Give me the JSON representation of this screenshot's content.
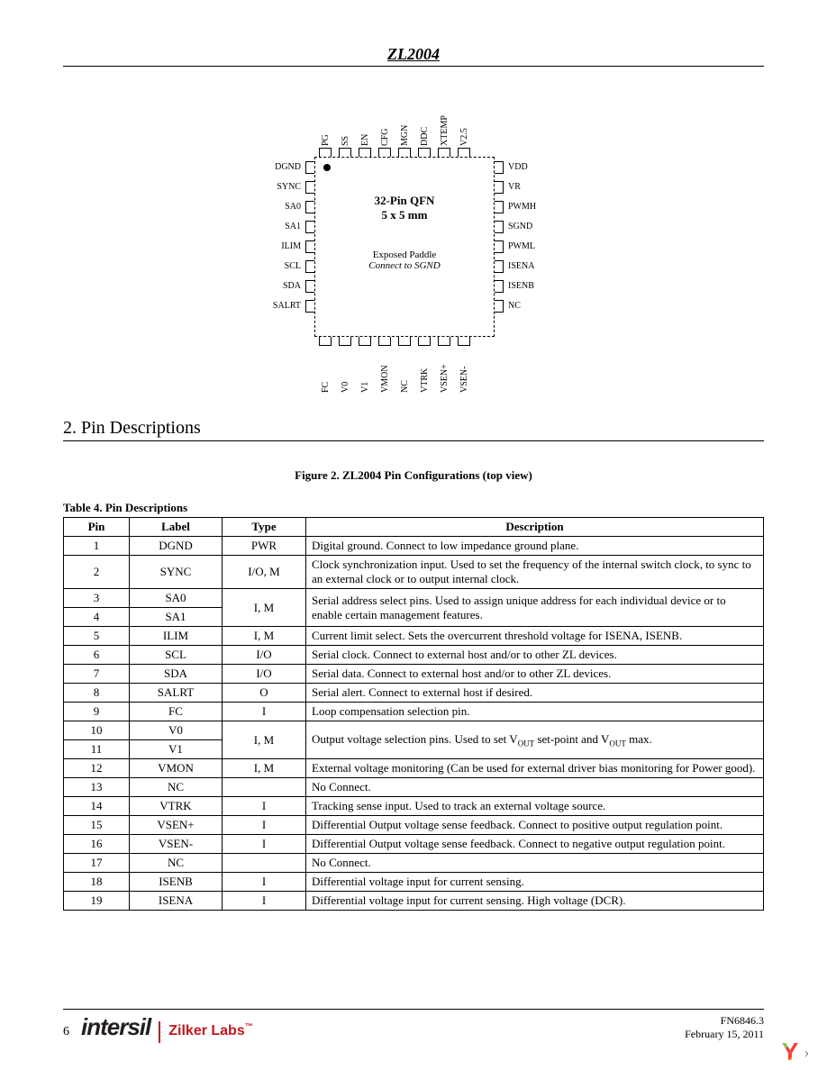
{
  "header": {
    "title": "ZL2004"
  },
  "chip": {
    "title1": "32-Pin QFN",
    "title2": "5 x 5 mm",
    "sub1": "Exposed Paddle",
    "sub2": "Connect to SGND",
    "top_labels": [
      "PG",
      "SS",
      "EN",
      "CFG",
      "MGN",
      "DDC",
      "XTEMP",
      "V2.5"
    ],
    "right_labels": [
      "VDD",
      "VR",
      "PWMH",
      "SGND",
      "PWML",
      "ISENA",
      "ISENB",
      "NC"
    ],
    "bottom_labels": [
      "FC",
      "V0",
      "V1",
      "VMON",
      "NC",
      "VTRK",
      "VSEN+",
      "VSEN-"
    ],
    "left_labels": [
      "DGND",
      "SYNC",
      "SA0",
      "SA1",
      "ILIM",
      "SCL",
      "SDA",
      "SALRT"
    ]
  },
  "section_title": "2. Pin Descriptions",
  "figure_caption": "Figure 2. ZL2004 Pin Configurations (top view)",
  "table_caption": "Table 4. Pin Descriptions",
  "table": {
    "headers": [
      "Pin",
      "Label",
      "Type",
      "Description"
    ],
    "rows": [
      {
        "pin": "1",
        "label": "DGND",
        "type": "PWR",
        "desc": "Digital ground. Connect to low impedance ground plane."
      },
      {
        "pin": "2",
        "label": "SYNC",
        "type": "I/O, M",
        "desc": "Clock synchronization input. Used to set the frequency of the internal switch clock, to sync to an external clock or to output internal clock."
      },
      {
        "pins": [
          "3",
          "4"
        ],
        "labels": [
          "SA0",
          "SA1"
        ],
        "type": "I, M",
        "desc": "Serial address select pins. Used to assign unique address for each individual device or to enable certain management features."
      },
      {
        "pin": "5",
        "label": "ILIM",
        "type": "I, M",
        "desc": "Current limit select. Sets the overcurrent threshold voltage for ISENA, ISENB."
      },
      {
        "pin": "6",
        "label": "SCL",
        "type": "I/O",
        "desc": "Serial clock. Connect to external host and/or to other ZL devices."
      },
      {
        "pin": "7",
        "label": "SDA",
        "type": "I/O",
        "desc": "Serial data. Connect to external host and/or to other ZL devices."
      },
      {
        "pin": "8",
        "label": "SALRT",
        "type": "O",
        "desc": "Serial alert. Connect to external host if desired."
      },
      {
        "pin": "9",
        "label": "FC",
        "type": "I",
        "desc": "Loop compensation selection pin."
      },
      {
        "pins": [
          "10",
          "11"
        ],
        "labels": [
          "V0",
          "V1"
        ],
        "type": "I, M",
        "desc_html": "Output voltage selection pins. Used to set V<span class='sub'>OUT</span> set-point and V<span class='sub'>OUT</span> max."
      },
      {
        "pin": "12",
        "label": "VMON",
        "type": "I, M",
        "desc": "External voltage monitoring (Can be used for external driver bias monitoring for Power good)."
      },
      {
        "pin": "13",
        "label": "NC",
        "type": "",
        "desc": "No Connect."
      },
      {
        "pin": "14",
        "label": "VTRK",
        "type": "I",
        "desc": "Tracking sense input. Used to track an external voltage source."
      },
      {
        "pin": "15",
        "label": "VSEN+",
        "type": "I",
        "desc": "Differential Output voltage sense feedback. Connect to positive output regulation point."
      },
      {
        "pin": "16",
        "label": "VSEN-",
        "type": "I",
        "desc": "Differential Output voltage sense feedback. Connect to negative output regulation point."
      },
      {
        "pin": "17",
        "label": "NC",
        "type": "",
        "desc": "No Connect."
      },
      {
        "pin": "18",
        "label": "ISENB",
        "type": "I",
        "desc": "Differential voltage input for current sensing."
      },
      {
        "pin": "19",
        "label": "ISENA",
        "type": "I",
        "desc": "Differential voltage input for current sensing. High voltage (DCR)."
      }
    ]
  },
  "footer": {
    "page": "6",
    "brand1": "intersil",
    "brand2": "Zilker Labs",
    "docnum": "FN6846.3",
    "date": "February 15, 2011"
  }
}
